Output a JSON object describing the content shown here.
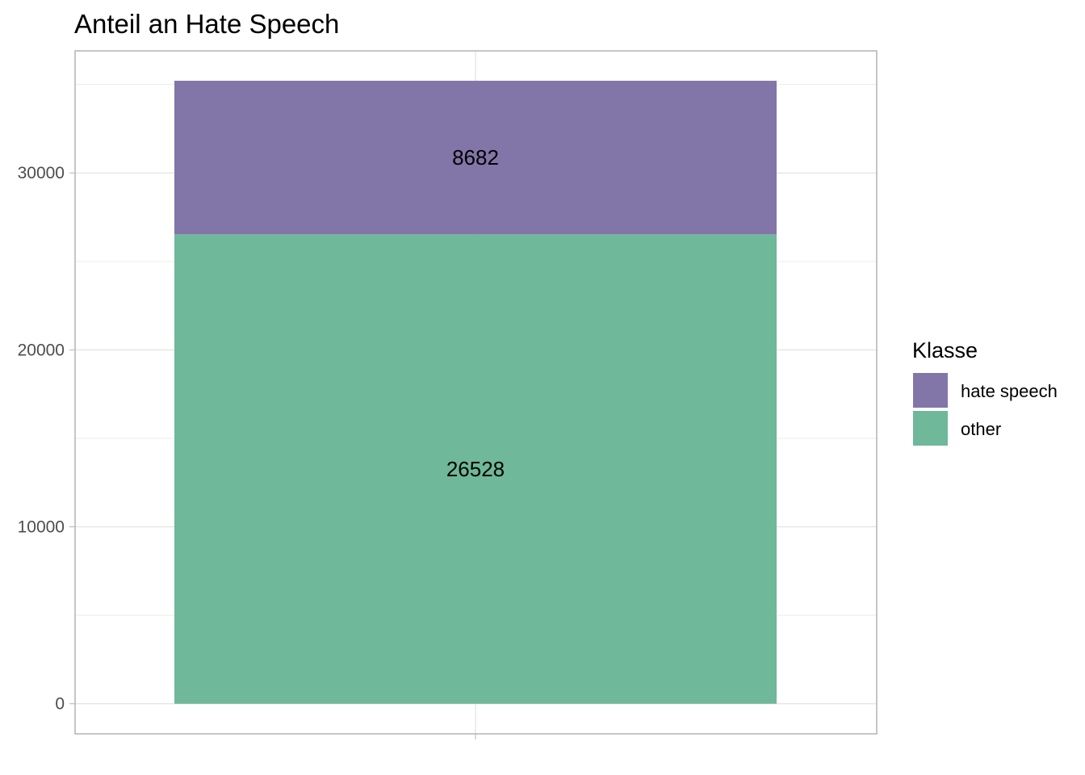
{
  "chart_data": {
    "type": "bar",
    "stacked": true,
    "title": "Anteil an Hate Speech",
    "xlabel": "",
    "ylabel": "",
    "categories": [
      ""
    ],
    "series": [
      {
        "name": "other",
        "values": [
          26528
        ],
        "color": "#6fb89a"
      },
      {
        "name": "hate speech",
        "values": [
          8682
        ],
        "color": "#8276a9"
      }
    ],
    "y_ticks": [
      0,
      10000,
      20000,
      30000
    ],
    "ylim": [
      -1700,
      36900
    ],
    "grid": true,
    "legend": {
      "title": "Klasse",
      "position": "right",
      "entries": [
        {
          "label": "hate speech",
          "color": "#8276a9"
        },
        {
          "label": "other",
          "color": "#6fb89a"
        }
      ]
    }
  }
}
